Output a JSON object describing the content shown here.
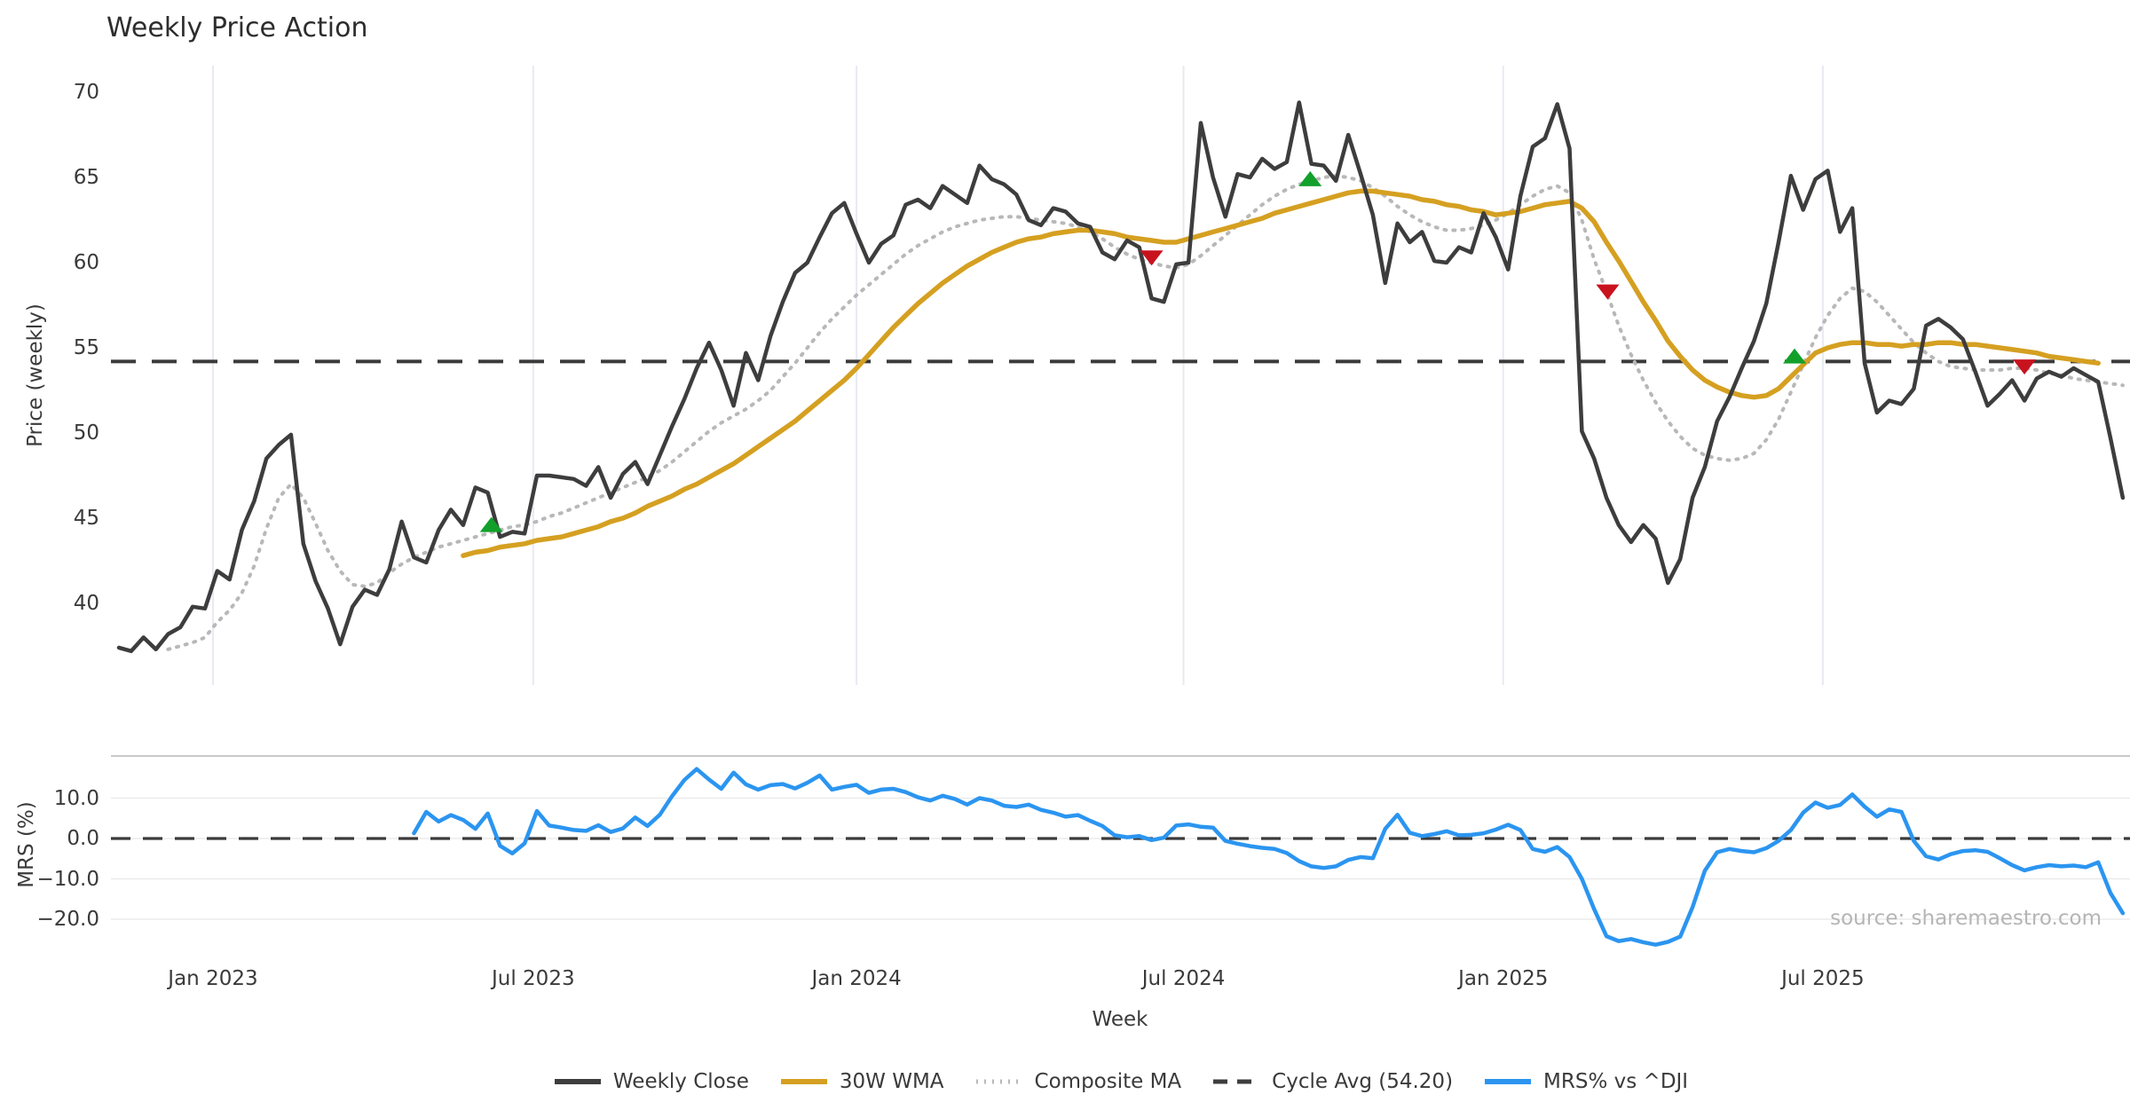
{
  "title": "Weekly Price Action",
  "watermark": "source: sharemaestro.com",
  "axes": {
    "main": {
      "ylabel": "Price (weekly)",
      "yticks": [
        70,
        65,
        60,
        55,
        50,
        45,
        40
      ]
    },
    "lower": {
      "ylabel": "MRS (%)",
      "ytick_labels": [
        "10.0",
        "0.0",
        "−10.0",
        "−20.0"
      ],
      "ytick_values": [
        10,
        0,
        -10,
        -20
      ]
    },
    "x": {
      "label": "Week",
      "ticks": [
        "Jan 2023",
        "Jul 2023",
        "Jan 2024",
        "Jul 2024",
        "Jan 2025",
        "Jul 2025"
      ],
      "tick_week_index": [
        7.65,
        33.7,
        60.0,
        86.6,
        112.6,
        138.6
      ]
    }
  },
  "legend": [
    {
      "label": "Weekly Close",
      "style": "solid",
      "color": "#3d3d3d"
    },
    {
      "label": "30W WMA",
      "style": "solid",
      "color": "#d5a021"
    },
    {
      "label": "Composite MA",
      "style": "dotted",
      "color": "#b8b8b8"
    },
    {
      "label": "Cycle Avg (54.20)",
      "style": "dashed",
      "color": "#3d3d3d"
    },
    {
      "label": "MRS% vs ^DJI",
      "style": "solid",
      "color": "#2b95f0"
    }
  ],
  "colors": {
    "close": "#3d3d3d",
    "wma": "#d5a021",
    "composite": "#b8b8b8",
    "cycle": "#3a3a3a",
    "mrs": "#2b95f0",
    "buy": "#12a02b",
    "sell": "#c8131f",
    "vgrid": "#e8eaf2",
    "hgrid": "#ebebeb",
    "panel_border": "#c9c9c9"
  },
  "chart_data": [
    {
      "type": "line",
      "title": "Weekly Price Action",
      "ylabel": "Price (weekly)",
      "ylim": [
        35.3,
        71.5
      ],
      "xlabel": "Week",
      "grid": "vertical-only",
      "legend_position": "bottom-center",
      "cycle_avg": 54.2,
      "series": [
        {
          "name": "Weekly Close",
          "start_index": 0,
          "values": [
            37.4,
            37.2,
            38.0,
            37.3,
            38.2,
            38.6,
            39.8,
            39.7,
            41.9,
            41.4,
            44.3,
            46.0,
            48.5,
            49.3,
            49.9,
            43.5,
            41.3,
            39.7,
            37.6,
            39.8,
            40.8,
            40.5,
            42.0,
            44.8,
            42.7,
            42.4,
            44.3,
            45.5,
            44.6,
            46.8,
            46.5,
            43.9,
            44.2,
            44.1,
            47.5,
            47.5,
            47.4,
            47.3,
            46.9,
            48.0,
            46.2,
            47.6,
            48.3,
            47.0,
            48.7,
            50.4,
            52.0,
            53.8,
            55.3,
            53.7,
            51.6,
            54.7,
            53.1,
            55.7,
            57.7,
            59.4,
            60.0,
            61.5,
            62.9,
            63.5,
            61.7,
            60.0,
            61.1,
            61.6,
            63.4,
            63.7,
            63.2,
            64.5,
            64.0,
            63.5,
            65.7,
            64.9,
            64.6,
            64.0,
            62.5,
            62.2,
            63.2,
            63.0,
            62.3,
            62.1,
            60.6,
            60.2,
            61.3,
            60.9,
            57.9,
            57.7,
            59.9,
            60.0,
            68.2,
            65.0,
            62.7,
            65.2,
            65.0,
            66.1,
            65.5,
            65.9,
            69.4,
            65.8,
            65.7,
            64.8,
            67.5,
            65.2,
            62.8,
            58.8,
            62.3,
            61.2,
            61.8,
            60.1,
            60.0,
            60.9,
            60.6,
            62.9,
            61.5,
            59.6,
            63.9,
            66.8,
            67.3,
            69.3,
            66.7,
            50.1,
            48.5,
            46.2,
            44.6,
            43.6,
            44.6,
            43.8,
            41.2,
            42.6,
            46.2,
            48.0,
            50.7,
            52.1,
            53.8,
            55.4,
            57.6,
            61.2,
            65.1,
            63.1,
            64.9,
            65.4,
            61.8,
            63.2,
            54.1,
            51.2,
            51.9,
            51.7,
            52.6,
            56.3,
            56.7,
            56.2,
            55.5,
            53.6,
            51.6,
            52.3,
            53.1,
            51.9,
            53.2,
            53.6,
            53.3,
            53.8,
            53.4,
            53.0,
            49.7,
            46.2
          ]
        },
        {
          "name": "30W WMA",
          "start_index": 28,
          "values": [
            42.8,
            43.0,
            43.1,
            43.3,
            43.4,
            43.5,
            43.7,
            43.8,
            43.9,
            44.1,
            44.3,
            44.5,
            44.8,
            45.0,
            45.3,
            45.7,
            46.0,
            46.3,
            46.7,
            47.0,
            47.4,
            47.8,
            48.2,
            48.7,
            49.2,
            49.7,
            50.2,
            50.7,
            51.3,
            51.9,
            52.5,
            53.1,
            53.8,
            54.6,
            55.4,
            56.2,
            56.9,
            57.6,
            58.2,
            58.8,
            59.3,
            59.8,
            60.2,
            60.6,
            60.9,
            61.2,
            61.4,
            61.5,
            61.7,
            61.8,
            61.9,
            61.9,
            61.8,
            61.7,
            61.5,
            61.4,
            61.3,
            61.2,
            61.2,
            61.4,
            61.6,
            61.8,
            62.0,
            62.2,
            62.4,
            62.6,
            62.9,
            63.1,
            63.3,
            63.5,
            63.7,
            63.9,
            64.1,
            64.2,
            64.2,
            64.1,
            64.0,
            63.9,
            63.7,
            63.6,
            63.4,
            63.3,
            63.1,
            63.0,
            62.8,
            62.9,
            63.0,
            63.2,
            63.4,
            63.5,
            63.6,
            63.2,
            62.4,
            61.2,
            60.1,
            58.9,
            57.7,
            56.6,
            55.4,
            54.5,
            53.7,
            53.1,
            52.7,
            52.4,
            52.2,
            52.1,
            52.2,
            52.6,
            53.3,
            54.0,
            54.7,
            55.0,
            55.2,
            55.3,
            55.3,
            55.2,
            55.2,
            55.1,
            55.2,
            55.2,
            55.3,
            55.3,
            55.2,
            55.2,
            55.1,
            55.0,
            54.9,
            54.8,
            54.7,
            54.5,
            54.4,
            54.3,
            54.2,
            54.1
          ]
        },
        {
          "name": "Composite MA",
          "start_index": 4,
          "values": [
            37.3,
            37.5,
            37.7,
            38.0,
            38.9,
            39.6,
            40.6,
            42.2,
            44.4,
            46.2,
            47.0,
            46.2,
            44.7,
            43.1,
            41.9,
            41.1,
            41.0,
            41.2,
            41.8,
            42.3,
            42.7,
            43.0,
            43.3,
            43.5,
            43.7,
            43.9,
            44.1,
            44.3,
            44.5,
            44.6,
            44.8,
            45.1,
            45.3,
            45.6,
            45.9,
            46.2,
            46.5,
            46.8,
            47.1,
            47.4,
            47.8,
            48.3,
            48.9,
            49.5,
            50.1,
            50.6,
            51.0,
            51.4,
            51.9,
            52.5,
            53.3,
            54.1,
            55.0,
            55.9,
            56.7,
            57.4,
            58.1,
            58.7,
            59.3,
            59.9,
            60.5,
            61.0,
            61.4,
            61.8,
            62.1,
            62.3,
            62.5,
            62.6,
            62.7,
            62.7,
            62.6,
            62.5,
            62.4,
            62.3,
            62.1,
            61.8,
            61.4,
            60.9,
            60.5,
            60.2,
            60.0,
            59.8,
            59.7,
            59.9,
            60.4,
            61.0,
            61.6,
            62.2,
            62.8,
            63.4,
            63.9,
            64.3,
            64.6,
            64.8,
            65.0,
            65.1,
            65.0,
            64.8,
            64.4,
            63.9,
            63.3,
            62.8,
            62.4,
            62.1,
            61.9,
            61.9,
            62.0,
            62.2,
            62.5,
            62.9,
            63.4,
            63.9,
            64.3,
            64.5,
            64.1,
            62.5,
            60.2,
            58.3,
            56.3,
            54.6,
            53.1,
            51.8,
            50.7,
            49.8,
            49.1,
            48.7,
            48.5,
            48.4,
            48.5,
            48.8,
            49.6,
            50.8,
            52.4,
            54.0,
            55.6,
            56.9,
            57.9,
            58.5,
            58.3,
            57.7,
            56.9,
            56.1,
            55.3,
            54.7,
            54.2,
            53.9,
            53.8,
            53.7,
            53.7,
            53.7,
            53.8,
            53.8,
            53.7,
            53.5,
            53.4,
            53.2,
            53.1,
            53.0,
            52.9,
            52.8
          ]
        }
      ],
      "markers": {
        "buy": [
          [
            30.3,
            44.6
          ],
          [
            96.9,
            64.9
          ],
          [
            136.3,
            54.5
          ]
        ],
        "sell": [
          [
            84.0,
            60.3
          ],
          [
            121.1,
            58.3
          ],
          [
            155.0,
            53.9
          ]
        ]
      }
    },
    {
      "type": "line",
      "ylabel": "MRS (%)",
      "ylim": [
        -27.5,
        20.5
      ],
      "zero_line": 0,
      "series": [
        {
          "name": "MRS% vs ^DJI",
          "start_index": 24,
          "values": [
            1.3,
            6.6,
            4.2,
            5.8,
            4.6,
            2.4,
            6.2,
            -1.8,
            -3.7,
            -1.2,
            6.8,
            3.2,
            2.7,
            2.1,
            1.9,
            3.3,
            1.6,
            2.5,
            5.2,
            3.1,
            5.9,
            10.5,
            14.5,
            17.2,
            14.6,
            12.3,
            16.3,
            13.4,
            12.1,
            13.2,
            13.5,
            12.4,
            13.8,
            15.6,
            12.1,
            12.8,
            13.3,
            11.3,
            12.1,
            12.3,
            11.5,
            10.2,
            9.4,
            10.6,
            9.8,
            8.4,
            10.0,
            9.4,
            8.1,
            7.8,
            8.4,
            7.1,
            6.4,
            5.4,
            5.8,
            4.4,
            3.1,
            0.8,
            0.3,
            0.6,
            -0.4,
            0.2,
            3.2,
            3.5,
            2.9,
            2.7,
            -0.6,
            -1.3,
            -1.9,
            -2.3,
            -2.6,
            -3.6,
            -5.6,
            -6.9,
            -7.3,
            -6.9,
            -5.3,
            -4.6,
            -4.9,
            2.4,
            5.9,
            1.4,
            0.6,
            1.1,
            1.8,
            0.8,
            0.9,
            1.3,
            2.2,
            3.4,
            2.1,
            -2.6,
            -3.3,
            -2.1,
            -4.6,
            -10.0,
            -17.5,
            -24.2,
            -25.4,
            -24.9,
            -25.7,
            -26.3,
            -25.6,
            -24.3,
            -17.0,
            -8.0,
            -3.4,
            -2.6,
            -3.1,
            -3.4,
            -2.4,
            -0.6,
            2.1,
            6.4,
            8.9,
            7.6,
            8.3,
            10.9,
            7.9,
            5.4,
            7.2,
            6.6,
            -0.6,
            -4.4,
            -5.2,
            -3.9,
            -3.1,
            -2.9,
            -3.3,
            -4.9,
            -6.6,
            -7.9,
            -7.1,
            -6.6,
            -6.9,
            -6.7,
            -7.1,
            -5.9,
            -13.5,
            -18.5
          ]
        }
      ]
    }
  ]
}
